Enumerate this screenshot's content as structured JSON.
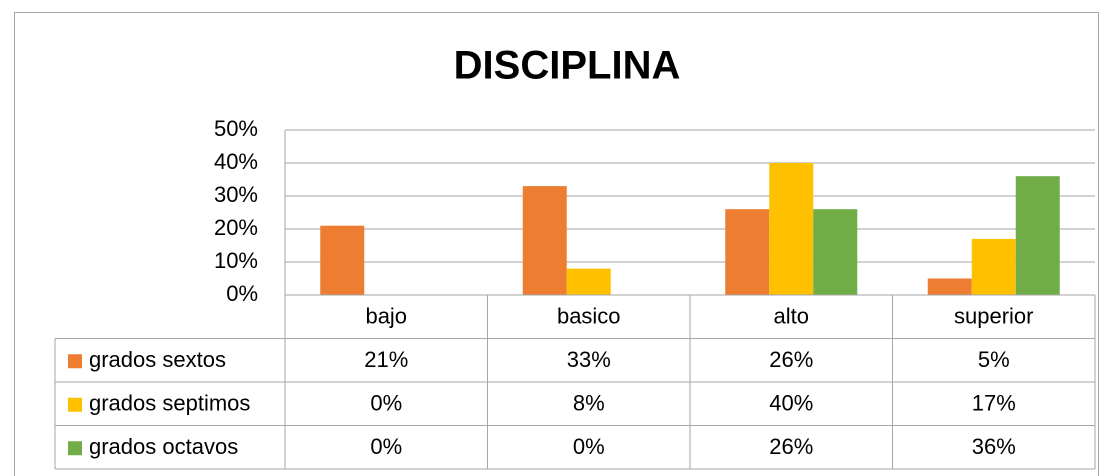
{
  "chart_data": {
    "type": "bar",
    "title": "DISCIPLINA",
    "categories": [
      "bajo",
      "basico",
      "alto",
      "superior"
    ],
    "series": [
      {
        "name": "grados sextos",
        "color": "#ED7D31",
        "values": [
          21,
          33,
          26,
          5
        ],
        "value_labels": [
          "21%",
          "33%",
          "26%",
          "5%"
        ]
      },
      {
        "name": "grados septimos",
        "color": "#FFC000",
        "values": [
          0,
          8,
          40,
          17
        ],
        "value_labels": [
          "0%",
          "8%",
          "40%",
          "17%"
        ]
      },
      {
        "name": "grados octavos",
        "color": "#70AD47",
        "values": [
          0,
          0,
          26,
          36
        ],
        "value_labels": [
          "0%",
          "0%",
          "26%",
          "36%"
        ]
      }
    ],
    "ylim": [
      0,
      50
    ],
    "yticks": [
      {
        "value": 0,
        "label": "0%"
      },
      {
        "value": 10,
        "label": "10%"
      },
      {
        "value": 20,
        "label": "20%"
      },
      {
        "value": 30,
        "label": "30%"
      },
      {
        "value": 40,
        "label": "40%"
      },
      {
        "value": 50,
        "label": "50%"
      }
    ],
    "grid": true,
    "data_table": true
  }
}
